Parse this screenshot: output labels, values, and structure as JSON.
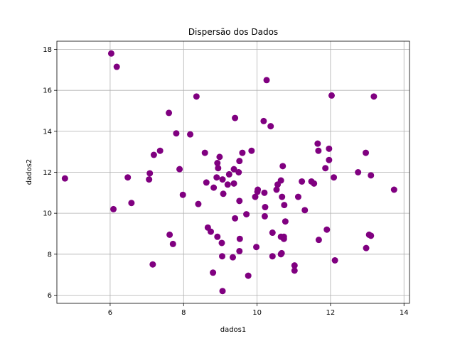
{
  "chart_data": {
    "type": "scatter",
    "title": "Dispersão dos Dados",
    "xlabel": "dados1",
    "ylabel": "dados2",
    "xlim": [
      4.55,
      14.15
    ],
    "ylim": [
      5.6,
      18.4
    ],
    "xticks": [
      6,
      8,
      10,
      12,
      14
    ],
    "yticks": [
      6,
      8,
      10,
      12,
      14,
      16,
      18
    ],
    "grid": true,
    "marker_color": "#800080",
    "points": [
      {
        "x": 6.03,
        "y": 17.8
      },
      {
        "x": 6.18,
        "y": 17.15
      },
      {
        "x": 4.77,
        "y": 11.7
      },
      {
        "x": 6.09,
        "y": 10.2
      },
      {
        "x": 6.48,
        "y": 11.75
      },
      {
        "x": 6.58,
        "y": 10.5
      },
      {
        "x": 7.08,
        "y": 11.95
      },
      {
        "x": 7.06,
        "y": 11.65
      },
      {
        "x": 7.19,
        "y": 12.85
      },
      {
        "x": 7.36,
        "y": 13.05
      },
      {
        "x": 7.16,
        "y": 7.5
      },
      {
        "x": 7.6,
        "y": 14.9
      },
      {
        "x": 7.62,
        "y": 8.95
      },
      {
        "x": 7.71,
        "y": 8.5
      },
      {
        "x": 7.8,
        "y": 13.9
      },
      {
        "x": 7.89,
        "y": 12.15
      },
      {
        "x": 7.98,
        "y": 10.9
      },
      {
        "x": 8.18,
        "y": 13.85
      },
      {
        "x": 8.35,
        "y": 15.7
      },
      {
        "x": 8.4,
        "y": 10.45
      },
      {
        "x": 8.58,
        "y": 12.95
      },
      {
        "x": 8.62,
        "y": 11.5
      },
      {
        "x": 8.66,
        "y": 9.3
      },
      {
        "x": 8.74,
        "y": 9.1
      },
      {
        "x": 8.82,
        "y": 11.25
      },
      {
        "x": 8.8,
        "y": 7.1
      },
      {
        "x": 8.9,
        "y": 11.75
      },
      {
        "x": 8.94,
        "y": 12.2
      },
      {
        "x": 8.92,
        "y": 12.45
      },
      {
        "x": 8.98,
        "y": 12.75
      },
      {
        "x": 8.92,
        "y": 8.85
      },
      {
        "x": 9.04,
        "y": 8.55
      },
      {
        "x": 9.06,
        "y": 11.65
      },
      {
        "x": 9.08,
        "y": 10.95
      },
      {
        "x": 9.05,
        "y": 7.9
      },
      {
        "x": 9.06,
        "y": 6.2
      },
      {
        "x": 9.2,
        "y": 11.4
      },
      {
        "x": 9.24,
        "y": 11.9
      },
      {
        "x": 9.37,
        "y": 12.15
      },
      {
        "x": 9.37,
        "y": 11.45
      },
      {
        "x": 9.4,
        "y": 14.65
      },
      {
        "x": 9.34,
        "y": 7.85
      },
      {
        "x": 9.4,
        "y": 9.75
      },
      {
        "x": 9.5,
        "y": 12.0
      },
      {
        "x": 9.52,
        "y": 12.55
      },
      {
        "x": 9.6,
        "y": 12.95
      },
      {
        "x": 9.52,
        "y": 10.6
      },
      {
        "x": 9.53,
        "y": 8.75
      },
      {
        "x": 9.52,
        "y": 8.15
      },
      {
        "x": 9.71,
        "y": 9.95
      },
      {
        "x": 9.76,
        "y": 6.95
      },
      {
        "x": 9.85,
        "y": 13.05
      },
      {
        "x": 9.95,
        "y": 10.8
      },
      {
        "x": 9.98,
        "y": 8.35
      },
      {
        "x": 10.01,
        "y": 11.05
      },
      {
        "x": 10.02,
        "y": 11.15
      },
      {
        "x": 10.18,
        "y": 14.5
      },
      {
        "x": 10.2,
        "y": 11.0
      },
      {
        "x": 10.22,
        "y": 10.3
      },
      {
        "x": 10.21,
        "y": 9.85
      },
      {
        "x": 10.26,
        "y": 16.5
      },
      {
        "x": 10.37,
        "y": 14.25
      },
      {
        "x": 10.42,
        "y": 9.05
      },
      {
        "x": 10.42,
        "y": 7.9
      },
      {
        "x": 10.53,
        "y": 11.15
      },
      {
        "x": 10.56,
        "y": 11.4
      },
      {
        "x": 10.65,
        "y": 11.6
      },
      {
        "x": 10.65,
        "y": 8.85
      },
      {
        "x": 10.67,
        "y": 8.05
      },
      {
        "x": 10.65,
        "y": 8.0
      },
      {
        "x": 10.68,
        "y": 10.8
      },
      {
        "x": 10.7,
        "y": 12.3
      },
      {
        "x": 10.73,
        "y": 8.85
      },
      {
        "x": 10.73,
        "y": 8.75
      },
      {
        "x": 10.74,
        "y": 10.4
      },
      {
        "x": 10.77,
        "y": 9.6
      },
      {
        "x": 11.02,
        "y": 7.45
      },
      {
        "x": 11.02,
        "y": 7.2
      },
      {
        "x": 11.12,
        "y": 10.8
      },
      {
        "x": 11.22,
        "y": 11.55
      },
      {
        "x": 11.3,
        "y": 10.15
      },
      {
        "x": 11.48,
        "y": 11.55
      },
      {
        "x": 11.55,
        "y": 11.45
      },
      {
        "x": 11.65,
        "y": 13.4
      },
      {
        "x": 11.67,
        "y": 13.05
      },
      {
        "x": 11.68,
        "y": 8.7
      },
      {
        "x": 11.86,
        "y": 12.2
      },
      {
        "x": 11.9,
        "y": 9.2
      },
      {
        "x": 11.96,
        "y": 13.15
      },
      {
        "x": 11.96,
        "y": 12.6
      },
      {
        "x": 12.03,
        "y": 15.75
      },
      {
        "x": 12.09,
        "y": 11.75
      },
      {
        "x": 12.12,
        "y": 7.7
      },
      {
        "x": 12.75,
        "y": 12.0
      },
      {
        "x": 12.96,
        "y": 12.95
      },
      {
        "x": 12.97,
        "y": 8.3
      },
      {
        "x": 13.05,
        "y": 8.95
      },
      {
        "x": 13.1,
        "y": 8.9
      },
      {
        "x": 13.1,
        "y": 11.85
      },
      {
        "x": 13.18,
        "y": 15.7
      },
      {
        "x": 13.73,
        "y": 11.15
      }
    ]
  }
}
